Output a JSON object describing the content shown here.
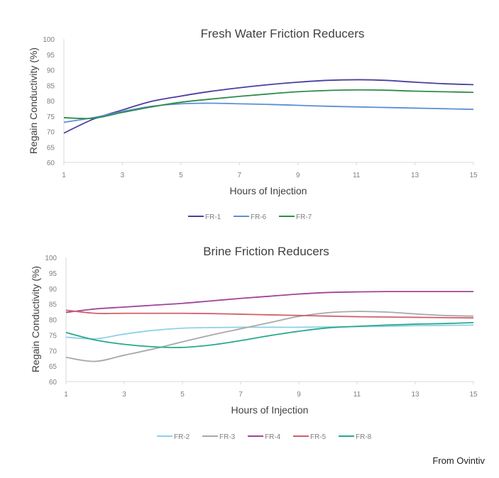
{
  "source_note": "From Ovintiv",
  "chart_data": [
    {
      "type": "line",
      "title": "Fresh Water Friction Reducers",
      "xlabel": "Hours of Injection",
      "ylabel": "Regain Conductivity (%)",
      "xlim": [
        1,
        15
      ],
      "ylim": [
        60,
        100
      ],
      "xticks": [
        "1",
        "3",
        "5",
        "7",
        "9",
        "11",
        "13",
        "15"
      ],
      "yticks": [
        "60",
        "65",
        "70",
        "75",
        "80",
        "85",
        "90",
        "95",
        "100"
      ],
      "legend_position": "bottom",
      "grid": false,
      "x": [
        1,
        2,
        3,
        4,
        5,
        6,
        7,
        8,
        9,
        10,
        11,
        12,
        13,
        14,
        15
      ],
      "series": [
        {
          "name": "FR-1",
          "color": "#4a3f9f",
          "values": [
            69.5,
            74,
            77,
            79.8,
            81.5,
            83,
            84.2,
            85.2,
            86,
            86.6,
            86.8,
            86.6,
            86,
            85.5,
            85.2
          ]
        },
        {
          "name": "FR-6",
          "color": "#5b8fd6",
          "values": [
            73,
            74.5,
            76.5,
            78.2,
            79,
            79.2,
            79,
            78.8,
            78.5,
            78.2,
            78,
            77.8,
            77.6,
            77.4,
            77.2
          ]
        },
        {
          "name": "FR-7",
          "color": "#2e8b4a",
          "values": [
            74.5,
            74.3,
            76.2,
            78,
            79.5,
            80.5,
            81.4,
            82.2,
            82.9,
            83.3,
            83.5,
            83.4,
            83.1,
            82.9,
            82.7
          ]
        }
      ]
    },
    {
      "type": "line",
      "title": "Brine Friction Reducers",
      "xlabel": "Hours of Injection",
      "ylabel": "Regain Conductivity (%)",
      "xlim": [
        1,
        15
      ],
      "ylim": [
        60,
        100
      ],
      "xticks": [
        "1",
        "3",
        "5",
        "7",
        "9",
        "11",
        "13",
        "15"
      ],
      "yticks": [
        "60",
        "65",
        "70",
        "75",
        "80",
        "85",
        "90",
        "95",
        "100"
      ],
      "legend_position": "bottom",
      "grid": false,
      "x": [
        1,
        2,
        3,
        4,
        5,
        6,
        7,
        8,
        9,
        10,
        11,
        12,
        13,
        14,
        15
      ],
      "series": [
        {
          "name": "FR-2",
          "color": "#8fd0ea",
          "values": [
            74.3,
            73.8,
            75.3,
            76.5,
            77.2,
            77.4,
            77.5,
            77.5,
            77.5,
            77.6,
            77.7,
            77.8,
            78,
            78.1,
            78.2
          ]
        },
        {
          "name": "FR-3",
          "color": "#a8a8a8",
          "values": [
            67.8,
            66.5,
            68.5,
            70.5,
            72.8,
            75,
            77,
            79,
            81,
            82.2,
            82.6,
            82.4,
            81.8,
            81.3,
            81.1
          ]
        },
        {
          "name": "FR-4",
          "color": "#a0449a",
          "values": [
            82.3,
            83.4,
            84,
            84.6,
            85.2,
            86,
            86.8,
            87.5,
            88.2,
            88.7,
            88.9,
            89,
            89,
            89,
            89
          ]
        },
        {
          "name": "FR-5",
          "color": "#d0606a",
          "values": [
            83,
            82,
            82,
            82,
            82,
            81.9,
            81.7,
            81.5,
            81.3,
            81.1,
            80.9,
            80.8,
            80.7,
            80.6,
            80.5
          ]
        },
        {
          "name": "FR-8",
          "color": "#2aa88a",
          "values": [
            75.8,
            73.4,
            72,
            71.2,
            71,
            71.8,
            73.2,
            74.8,
            76.2,
            77.3,
            77.8,
            78.2,
            78.5,
            78.7,
            79
          ]
        }
      ]
    }
  ]
}
